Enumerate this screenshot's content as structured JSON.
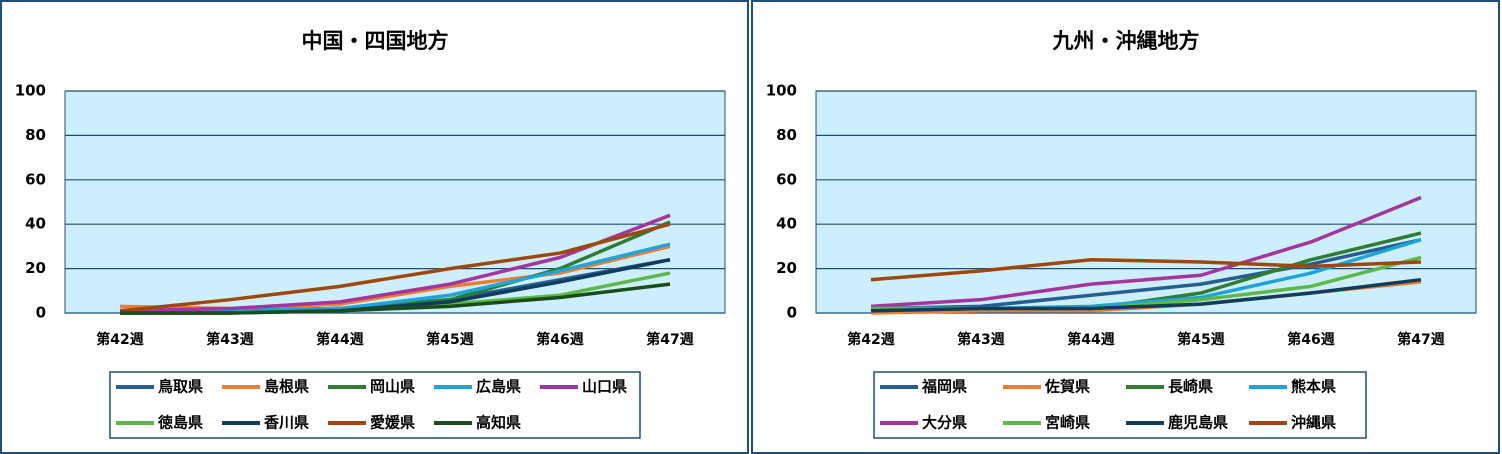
{
  "chart_data": [
    {
      "type": "line",
      "title": "中国・四国地方",
      "categories": [
        "第42週",
        "第43週",
        "第44週",
        "第45週",
        "第46週",
        "第47週"
      ],
      "ylim": [
        0,
        100
      ],
      "yticks": [
        0,
        20,
        40,
        60,
        80,
        100
      ],
      "grid": true,
      "series": [
        {
          "name": "鳥取県",
          "color": "#255e91",
          "values": [
            1,
            1,
            2,
            6,
            15,
            24
          ]
        },
        {
          "name": "島根県",
          "color": "#ed7d31",
          "values": [
            3,
            2,
            4,
            12,
            18,
            30
          ]
        },
        {
          "name": "岡山県",
          "color": "#2e7d32",
          "values": [
            1,
            1,
            2,
            6,
            20,
            41
          ]
        },
        {
          "name": "広島県",
          "color": "#1ea4d8",
          "values": [
            1,
            1,
            2,
            8,
            19,
            31
          ]
        },
        {
          "name": "山口県",
          "color": "#a5359e",
          "values": [
            1,
            2,
            5,
            13,
            25,
            44
          ]
        },
        {
          "name": "徳島県",
          "color": "#5cb848",
          "values": [
            0,
            0,
            1,
            4,
            8,
            18
          ]
        },
        {
          "name": "香川県",
          "color": "#103d5c",
          "values": [
            0,
            0,
            1,
            5,
            14,
            24
          ]
        },
        {
          "name": "愛媛県",
          "color": "#9e480e",
          "values": [
            1,
            6,
            12,
            20,
            27,
            40
          ]
        },
        {
          "name": "高知県",
          "color": "#1b4d1b",
          "values": [
            0,
            0,
            1,
            3,
            7,
            13
          ]
        }
      ]
    },
    {
      "type": "line",
      "title": "九州・沖縄地方",
      "categories": [
        "第42週",
        "第43週",
        "第44週",
        "第45週",
        "第46週",
        "第47週"
      ],
      "ylim": [
        0,
        100
      ],
      "yticks": [
        0,
        20,
        40,
        60,
        80,
        100
      ],
      "grid": true,
      "series": [
        {
          "name": "福岡県",
          "color": "#255e91",
          "values": [
            2,
            3,
            8,
            13,
            22,
            33
          ]
        },
        {
          "name": "佐賀県",
          "color": "#ed7d31",
          "values": [
            0,
            1,
            1,
            4,
            9,
            14
          ]
        },
        {
          "name": "長崎県",
          "color": "#2e7d32",
          "values": [
            1,
            2,
            2,
            9,
            24,
            36
          ]
        },
        {
          "name": "熊本県",
          "color": "#1ea4d8",
          "values": [
            2,
            2,
            3,
            7,
            18,
            33
          ]
        },
        {
          "name": "大分県",
          "color": "#a5359e",
          "values": [
            3,
            6,
            13,
            17,
            32,
            52
          ]
        },
        {
          "name": "宮崎県",
          "color": "#5cb848",
          "values": [
            2,
            2,
            2,
            6,
            12,
            25
          ]
        },
        {
          "name": "鹿児島県",
          "color": "#103d5c",
          "values": [
            1,
            2,
            2,
            4,
            9,
            15
          ]
        },
        {
          "name": "沖縄県",
          "color": "#9e480e",
          "values": [
            15,
            19,
            24,
            23,
            21,
            23
          ]
        }
      ]
    }
  ]
}
